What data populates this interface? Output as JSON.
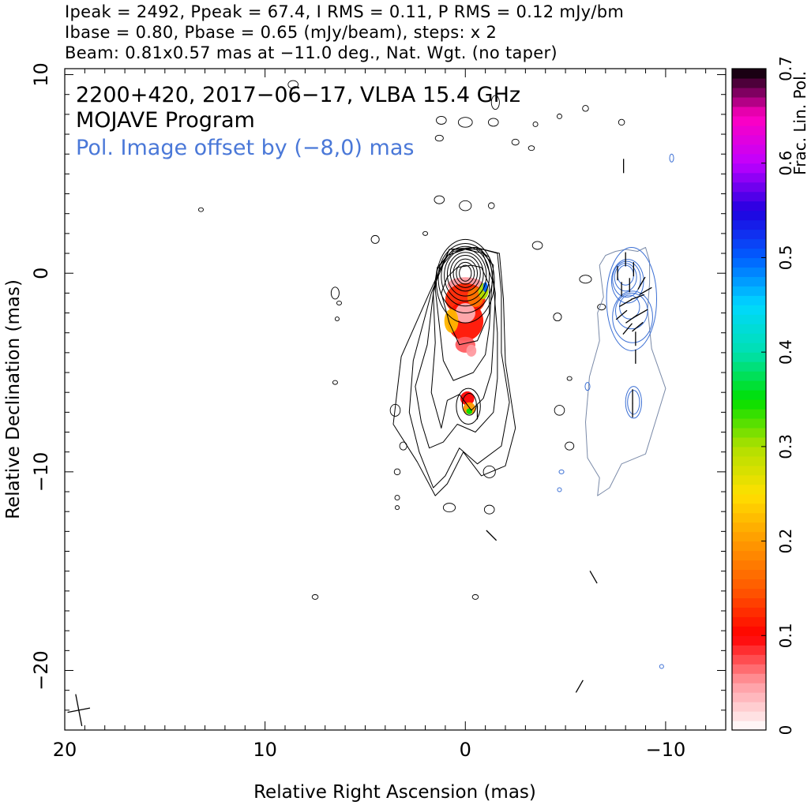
{
  "header": {
    "line1": "Ipeak = 2492, Ppeak = 67.4, I RMS = 0.11, P RMS = 0.12 mJy/bm",
    "line2": "Ibase = 0.80, Pbase = 0.65 (mJy/beam), steps: x 2",
    "line3": "Beam: 0.81x0.57 mas at −11.0 deg., Nat. Wgt. (no taper)"
  },
  "annotations": {
    "source_line": "2200+420, 2017−06−17, VLBA 15.4 GHz",
    "program_line": "MOJAVE Program",
    "offset_line": "Pol. Image offset by (−8,0) mas"
  },
  "colors": {
    "total_intensity_contours": "#000000",
    "pol_contours": "#3b6fd4",
    "pol_outer_contour": "#7a8aa8",
    "annotation_blue": "#4a78d8"
  },
  "chart_data": {
    "type": "heatmap",
    "title": "2200+420, 2017−06−17, VLBA 15.4 GHz",
    "xlabel": "Relative Right Ascension (mas)",
    "ylabel": "Relative Declination (mas)",
    "xlim": [
      20,
      -13
    ],
    "ylim": [
      -23,
      10.3
    ],
    "x_reversed": true,
    "x_ticks": [
      20,
      10,
      0,
      -10
    ],
    "x_tick_labels": [
      "20",
      "10",
      "0",
      "−10"
    ],
    "y_ticks": [
      10,
      0,
      -10,
      -20
    ],
    "y_tick_labels": [
      "10",
      "0",
      "−10",
      "−20"
    ],
    "colorbar": {
      "label": "Frac. Lin. Pol.",
      "range": [
        0,
        0.7
      ],
      "ticks": [
        0,
        0.1,
        0.2,
        0.3,
        0.4,
        0.5,
        0.6,
        0.7
      ],
      "tick_labels": [
        "0",
        "0.1",
        "0.2",
        "0.3",
        "0.4",
        "0.5",
        "0.6",
        "0.7"
      ],
      "stops": [
        {
          "v": 0.0,
          "color": "#ffffff"
        },
        {
          "v": 0.05,
          "color": "#ff9aa0"
        },
        {
          "v": 0.1,
          "color": "#ff0000"
        },
        {
          "v": 0.15,
          "color": "#ff5a00"
        },
        {
          "v": 0.2,
          "color": "#ff9a00"
        },
        {
          "v": 0.25,
          "color": "#ffe000"
        },
        {
          "v": 0.3,
          "color": "#b0e000"
        },
        {
          "v": 0.35,
          "color": "#00e000"
        },
        {
          "v": 0.4,
          "color": "#00e0b0"
        },
        {
          "v": 0.45,
          "color": "#00d8ff"
        },
        {
          "v": 0.5,
          "color": "#0060ff"
        },
        {
          "v": 0.55,
          "color": "#2000e0"
        },
        {
          "v": 0.6,
          "color": "#c000ff"
        },
        {
          "v": 0.65,
          "color": "#ff00c0"
        },
        {
          "v": 0.7,
          "color": "#000000"
        }
      ]
    },
    "beam": {
      "major_mas": 0.81,
      "minor_mas": 0.57,
      "pa_deg": -11.0,
      "center": [
        19.3,
        -22.0
      ]
    },
    "core": {
      "ra": 0.0,
      "dec": 0.0
    },
    "pol_image_offset_mas": [
      -8,
      0
    ],
    "core_contours": [
      {
        "ra": 0.0,
        "dec": 0.0,
        "rx": 0.3,
        "ry": 0.4
      },
      {
        "ra": 0.0,
        "dec": 0.0,
        "rx": 0.45,
        "ry": 0.55
      },
      {
        "ra": 0.0,
        "dec": 0.0,
        "rx": 0.6,
        "ry": 0.72
      },
      {
        "ra": 0.0,
        "dec": 0.0,
        "rx": 0.75,
        "ry": 0.9
      },
      {
        "ra": 0.0,
        "dec": -0.05,
        "rx": 0.9,
        "ry": 1.1
      },
      {
        "ra": 0.0,
        "dec": -0.1,
        "rx": 1.05,
        "ry": 1.3
      },
      {
        "ra": 0.0,
        "dec": -0.15,
        "rx": 1.2,
        "ry": 1.5
      },
      {
        "ra": 0.0,
        "dec": -0.25,
        "rx": 1.35,
        "ry": 1.75
      },
      {
        "ra": 0.0,
        "dec": -0.4,
        "rx": 1.45,
        "ry": 2.1
      }
    ],
    "jet_outline_contours": [
      {
        "ra": [
          1.2,
          0.8,
          0.3,
          -0.6,
          -1.2,
          -1.2,
          -0.8,
          -0.3,
          0.4,
          0.9
        ],
        "dec": [
          -1.0,
          -2.5,
          -3.6,
          -3.4,
          -2.0,
          -0.6,
          0.3,
          0.4,
          0.3,
          -0.2
        ]
      },
      {
        "ra": [
          1.5,
          1.3,
          1.1,
          0.6,
          -0.4,
          -1.0,
          -1.2,
          -1.3,
          -1.4,
          -0.9,
          0.0,
          0.9,
          1.4
        ],
        "dec": [
          -0.8,
          -2.6,
          -4.4,
          -5.4,
          -5.0,
          -4.1,
          -2.7,
          -1.0,
          0.4,
          1.0,
          1.2,
          0.9,
          0.2
        ]
      },
      {
        "ra": [
          1.6,
          1.5,
          1.7,
          1.2,
          0.9,
          0.3,
          -0.3,
          -0.9,
          -1.3,
          -1.4,
          -1.5,
          -1.2,
          -0.5,
          0.6,
          1.3
        ],
        "dec": [
          -1.0,
          -3.5,
          -6.0,
          -7.8,
          -6.4,
          -6.1,
          -6.9,
          -6.3,
          -5.0,
          -3.3,
          -1.0,
          0.8,
          1.3,
          1.1,
          0.2
        ]
      },
      {
        "ra": [
          1.6,
          1.9,
          2.5,
          2.2,
          1.8,
          1.1,
          0.4,
          -0.5,
          -1.4,
          -1.6,
          -1.6,
          -1.4,
          -0.8,
          0.6,
          1.4
        ],
        "dec": [
          -1.0,
          -3.6,
          -5.7,
          -7.5,
          -8.8,
          -8.5,
          -7.6,
          -8.0,
          -7.0,
          -5.3,
          -3.0,
          -0.5,
          1.2,
          1.2,
          0.3
        ]
      },
      {
        "ra": [
          1.7,
          2.6,
          2.8,
          2.3,
          1.6,
          1.0,
          0.3,
          -0.6,
          -1.8,
          -2.2,
          -1.8,
          -1.8,
          -1.6,
          -0.5,
          0.8
        ],
        "dec": [
          -1.0,
          -4.4,
          -7.0,
          -9.0,
          -10.8,
          -10.2,
          -8.8,
          -9.6,
          -8.7,
          -6.5,
          -4.0,
          -1.0,
          1.0,
          1.3,
          1.2
        ]
      },
      {
        "ra": [
          1.8,
          3.2,
          3.6,
          2.4,
          1.5,
          0.9,
          0.1,
          -0.8,
          -2.0,
          -2.5,
          -2.0,
          -1.9,
          -1.7,
          -0.5,
          0.8
        ],
        "dec": [
          -1.0,
          -4.2,
          -7.6,
          -9.5,
          -11.2,
          -10.6,
          -9.0,
          -10.2,
          -9.7,
          -7.8,
          -4.5,
          -1.3,
          1.0,
          1.3,
          1.2
        ]
      }
    ],
    "knot_contours": [
      {
        "ra": -0.2,
        "dec": -6.6,
        "rx": 0.35,
        "ry": 0.55
      },
      {
        "ra": -0.15,
        "dec": -6.7,
        "rx": 0.6,
        "ry": 0.9
      }
    ],
    "noise_islands": [
      {
        "ra": 8.6,
        "dec": 9.5,
        "rx": 0.25,
        "ry": 0.2
      },
      {
        "ra": 0.0,
        "dec": 7.6,
        "rx": 0.35,
        "ry": 0.25
      },
      {
        "ra": 1.2,
        "dec": 7.7,
        "rx": 0.25,
        "ry": 0.2
      },
      {
        "ra": -1.4,
        "dec": 7.6,
        "rx": 0.25,
        "ry": 0.2
      },
      {
        "ra": -1.5,
        "dec": 8.6,
        "rx": 0.2,
        "ry": 0.35
      },
      {
        "ra": 1.3,
        "dec": 6.8,
        "rx": 0.2,
        "ry": 0.15
      },
      {
        "ra": -2.5,
        "dec": 6.6,
        "rx": 0.18,
        "ry": 0.15
      },
      {
        "ra": -3.3,
        "dec": 6.3,
        "rx": 0.15,
        "ry": 0.12
      },
      {
        "ra": 1.3,
        "dec": 3.7,
        "rx": 0.25,
        "ry": 0.2
      },
      {
        "ra": 0.0,
        "dec": 3.4,
        "rx": 0.3,
        "ry": 0.25
      },
      {
        "ra": -1.3,
        "dec": 3.4,
        "rx": 0.15,
        "ry": 0.15
      },
      {
        "ra": 4.5,
        "dec": 1.7,
        "rx": 0.2,
        "ry": 0.2
      },
      {
        "ra": 2.0,
        "dec": 2.0,
        "rx": 0.12,
        "ry": 0.1
      },
      {
        "ra": 6.5,
        "dec": -1.0,
        "rx": 0.2,
        "ry": 0.3
      },
      {
        "ra": 6.3,
        "dec": -1.5,
        "rx": 0.12,
        "ry": 0.1
      },
      {
        "ra": 6.4,
        "dec": -2.3,
        "rx": 0.1,
        "ry": 0.1
      },
      {
        "ra": 6.5,
        "dec": -5.5,
        "rx": 0.12,
        "ry": 0.1
      },
      {
        "ra": 3.5,
        "dec": -6.9,
        "rx": 0.25,
        "ry": 0.3
      },
      {
        "ra": 3.1,
        "dec": -8.7,
        "rx": 0.18,
        "ry": 0.2
      },
      {
        "ra": 3.4,
        "dec": -10.0,
        "rx": 0.15,
        "ry": 0.15
      },
      {
        "ra": 3.4,
        "dec": -11.3,
        "rx": 0.12,
        "ry": 0.12
      },
      {
        "ra": 3.4,
        "dec": -11.8,
        "rx": 0.1,
        "ry": 0.1
      },
      {
        "ra": -1.2,
        "dec": -10.0,
        "rx": 0.3,
        "ry": 0.3
      },
      {
        "ra": -1.2,
        "dec": -11.9,
        "rx": 0.25,
        "ry": 0.22
      },
      {
        "ra": 0.8,
        "dec": -11.8,
        "rx": 0.3,
        "ry": 0.22
      },
      {
        "ra": -3.6,
        "dec": 1.4,
        "rx": 0.25,
        "ry": 0.2
      },
      {
        "ra": -4.6,
        "dec": -2.2,
        "rx": 0.2,
        "ry": 0.2
      },
      {
        "ra": -4.7,
        "dec": -6.9,
        "rx": 0.25,
        "ry": 0.25
      },
      {
        "ra": -5.2,
        "dec": -8.7,
        "rx": 0.22,
        "ry": 0.2
      },
      {
        "ra": -5.2,
        "dec": -5.3,
        "rx": 0.12,
        "ry": 0.1
      },
      {
        "ra": -6.0,
        "dec": -0.3,
        "rx": 0.3,
        "ry": 0.2
      },
      {
        "ra": -6.8,
        "dec": -1.7,
        "rx": 0.2,
        "ry": 0.15
      },
      {
        "ra": 7.5,
        "dec": -16.3,
        "rx": 0.15,
        "ry": 0.12
      },
      {
        "ra": -0.5,
        "dec": -16.3,
        "rx": 0.15,
        "ry": 0.12
      },
      {
        "ra": -6.0,
        "dec": 8.3,
        "rx": 0.15,
        "ry": 0.15
      },
      {
        "ra": 13.2,
        "dec": 3.2,
        "rx": 0.12,
        "ry": 0.1
      },
      {
        "ra": -7.8,
        "dec": 7.6,
        "rx": 0.15,
        "ry": 0.15
      },
      {
        "ra": -4.7,
        "dec": 7.9,
        "rx": 0.12,
        "ry": 0.12
      },
      {
        "ra": -3.5,
        "dec": 7.5,
        "rx": 0.12,
        "ry": 0.12
      }
    ],
    "pol_fill": [
      {
        "ra": 0.0,
        "dec": -0.6,
        "rx": 0.9,
        "ry": 0.4,
        "v": 0.05
      },
      {
        "ra": 0.0,
        "dec": -1.3,
        "rx": 1.0,
        "ry": 0.8,
        "v": 0.12
      },
      {
        "ra": 0.0,
        "dec": -2.4,
        "rx": 0.9,
        "ry": 1.0,
        "v": 0.11
      },
      {
        "ra": 0.0,
        "dec": -2.0,
        "rx": 0.5,
        "ry": 0.5,
        "v": 0.04
      },
      {
        "ra": -0.5,
        "dec": -1.2,
        "rx": 0.4,
        "ry": 0.5,
        "v": 0.17
      },
      {
        "ra": 0.7,
        "dec": -2.4,
        "rx": 0.35,
        "ry": 0.6,
        "v": 0.22
      },
      {
        "ra": -0.9,
        "dec": -0.9,
        "rx": 0.25,
        "ry": 0.4,
        "v": 0.3
      },
      {
        "ra": -1.0,
        "dec": -0.7,
        "rx": 0.12,
        "ry": 0.25,
        "v": 0.5
      },
      {
        "ra": 0.0,
        "dec": -3.6,
        "rx": 0.5,
        "ry": 0.4,
        "v": 0.07
      },
      {
        "ra": -0.3,
        "dec": -3.9,
        "rx": 0.25,
        "ry": 0.3,
        "v": 0.05
      },
      {
        "ra": -0.1,
        "dec": -6.3,
        "rx": 0.35,
        "ry": 0.35,
        "v": 0.1
      },
      {
        "ra": -0.2,
        "dec": -6.8,
        "rx": 0.3,
        "ry": 0.3,
        "v": 0.2
      },
      {
        "ra": -0.2,
        "dec": -6.95,
        "rx": 0.15,
        "ry": 0.15,
        "v": 0.35
      }
    ],
    "pol_contours": [
      {
        "ra": -8.0,
        "dec": -0.1,
        "rx": 0.4,
        "ry": 0.5
      },
      {
        "ra": -8.0,
        "dec": -0.2,
        "rx": 0.55,
        "ry": 0.7
      },
      {
        "ra": -8.05,
        "dec": -0.3,
        "rx": 0.7,
        "ry": 0.9
      },
      {
        "ra": -8.1,
        "dec": -0.4,
        "rx": 0.8,
        "ry": 1.1
      },
      {
        "ra": -8.2,
        "dec": -1.7,
        "rx": 0.5,
        "ry": 0.6
      },
      {
        "ra": -8.3,
        "dec": -1.9,
        "rx": 0.8,
        "ry": 0.9
      },
      {
        "ra": -8.35,
        "dec": -2.2,
        "rx": 1.0,
        "ry": 1.3
      },
      {
        "ra": -8.3,
        "dec": -1.3,
        "rx": 1.25,
        "ry": 2.6
      },
      {
        "ra": -8.4,
        "dec": -6.5,
        "rx": 0.3,
        "ry": 0.6
      },
      {
        "ra": -8.4,
        "dec": -6.5,
        "rx": 0.4,
        "ry": 0.8
      },
      {
        "ra": -6.1,
        "dec": -5.7,
        "rx": 0.12,
        "ry": 0.2
      },
      {
        "ra": -10.3,
        "dec": 5.8,
        "rx": 0.1,
        "ry": 0.2
      },
      {
        "ra": -4.8,
        "dec": -10.0,
        "rx": 0.12,
        "ry": 0.1
      },
      {
        "ra": -4.7,
        "dec": -10.9,
        "rx": 0.1,
        "ry": 0.1
      },
      {
        "ra": -9.8,
        "dec": -19.8,
        "rx": 0.1,
        "ry": 0.1
      }
    ],
    "pol_outer_outline": {
      "ra": [
        -6.7,
        -6.9,
        -6.6,
        -6.7,
        -6.2,
        -6.0,
        -6.1,
        -6.7,
        -6.6,
        -7.2,
        -7.8,
        -9.0,
        -10.0,
        -9.3,
        -9.1,
        -9.2,
        -9.2,
        -9.0,
        -8.6,
        -8.0,
        -7.5,
        -7.0
      ],
      "dec": [
        0.4,
        -1.2,
        -2.0,
        -3.4,
        -5.2,
        -7.5,
        -9.3,
        -10.3,
        -11.2,
        -10.8,
        -9.6,
        -9.1,
        -5.8,
        -3.8,
        -1.8,
        -0.5,
        0.6,
        1.3,
        1.1,
        1.2,
        1.1,
        0.9
      ]
    },
    "evpa_ticks": [
      {
        "ra": -8.0,
        "dec": 0.7,
        "angle": 90
      },
      {
        "ra": -7.6,
        "dec": 0.0,
        "angle": 90
      },
      {
        "ra": -8.4,
        "dec": 0.2,
        "angle": 90
      },
      {
        "ra": -8.2,
        "dec": -0.6,
        "angle": 90
      },
      {
        "ra": -7.8,
        "dec": -0.8,
        "angle": 90
      },
      {
        "ra": -8.8,
        "dec": -0.5,
        "angle": 60
      },
      {
        "ra": -9.0,
        "dec": -0.9,
        "angle": 30
      },
      {
        "ra": -8.6,
        "dec": -1.2,
        "angle": 20
      },
      {
        "ra": -8.0,
        "dec": -1.5,
        "angle": 30
      },
      {
        "ra": -7.8,
        "dec": -2.1,
        "angle": 40
      },
      {
        "ra": -8.3,
        "dec": -2.3,
        "angle": 35
      },
      {
        "ra": -8.8,
        "dec": -2.0,
        "angle": 30
      },
      {
        "ra": -8.1,
        "dec": -2.8,
        "angle": 50
      },
      {
        "ra": -8.6,
        "dec": -2.7,
        "angle": 40
      },
      {
        "ra": -8.5,
        "dec": -3.3,
        "angle": 90
      },
      {
        "ra": -8.5,
        "dec": -4.2,
        "angle": 90
      },
      {
        "ra": -8.35,
        "dec": -6.2,
        "angle": 90
      },
      {
        "ra": -8.35,
        "dec": -6.9,
        "angle": 90
      },
      {
        "ra": -7.9,
        "dec": 5.4,
        "angle": 90
      },
      {
        "ra": -1.3,
        "dec": -13.2,
        "angle": 135
      },
      {
        "ra": -6.4,
        "dec": -15.3,
        "angle": 120
      },
      {
        "ra": -5.7,
        "dec": -20.8,
        "angle": 60
      },
      {
        "ra": -0.6,
        "dec": -7.0,
        "angle": 90
      }
    ]
  }
}
